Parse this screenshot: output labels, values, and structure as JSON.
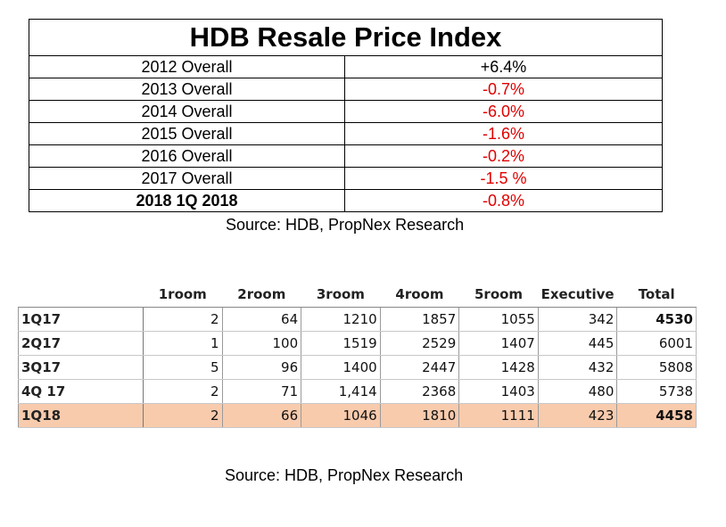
{
  "price_index": {
    "title": "HDB Resale Price Index",
    "rows": [
      {
        "label": "2012 Overall",
        "value": "+6.4%",
        "negative": false,
        "bold": false
      },
      {
        "label": "2013 Overall",
        "value": "-0.7%",
        "negative": true,
        "bold": false
      },
      {
        "label": "2014 Overall",
        "value": "-6.0%",
        "negative": true,
        "bold": false
      },
      {
        "label": "2015 Overall",
        "value": "-1.6%",
        "negative": true,
        "bold": false
      },
      {
        "label": "2016 Overall",
        "value": "-0.2%",
        "negative": true,
        "bold": false
      },
      {
        "label": "2017 Overall",
        "value": "-1.5 %",
        "negative": true,
        "bold": false
      },
      {
        "label": "2018 1Q 2018",
        "value": "-0.8%",
        "negative": true,
        "bold": true
      }
    ],
    "source": "Source: HDB, PropNex Research"
  },
  "transactions": {
    "headers": [
      "1room",
      "2room",
      "3room",
      "4room",
      "5room",
      "Executive",
      "Total"
    ],
    "rows": [
      {
        "label": "1Q17",
        "values": [
          "2",
          "64",
          "1210",
          "1857",
          "1055",
          "342",
          "4530"
        ],
        "total_bold": true,
        "highlight": false
      },
      {
        "label": "2Q17",
        "values": [
          "1",
          "100",
          "1519",
          "2529",
          "1407",
          "445",
          "6001"
        ],
        "total_bold": false,
        "highlight": false
      },
      {
        "label": "3Q17",
        "values": [
          "5",
          "96",
          "1400",
          "2447",
          "1428",
          "432",
          "5808"
        ],
        "total_bold": false,
        "highlight": false
      },
      {
        "label": "4Q 17",
        "values": [
          "2",
          "71",
          "1,414",
          "2368",
          "1403",
          "480",
          "5738"
        ],
        "total_bold": false,
        "highlight": false
      },
      {
        "label": "1Q18",
        "values": [
          "2",
          "66",
          "1046",
          "1810",
          "1111",
          "423",
          "4458"
        ],
        "total_bold": true,
        "highlight": true
      }
    ],
    "highlight_color": "#f8cbad",
    "source": "Source: HDB, PropNex Research"
  },
  "colors": {
    "negative": "#e00000"
  }
}
